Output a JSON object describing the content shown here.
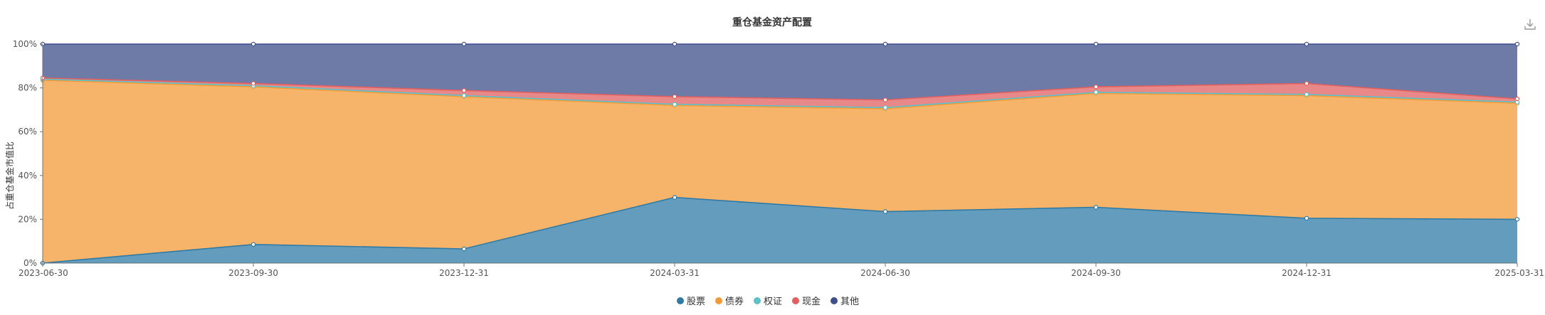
{
  "chart_data": {
    "type": "area",
    "stacked": true,
    "title": "重仓基金资产配置",
    "ylabel": "占重仓基金市值比",
    "xlabel": "",
    "ylim": [
      0,
      100
    ],
    "y_tick_values": [
      0,
      20,
      40,
      60,
      80,
      100
    ],
    "y_tick_labels": [
      "0%",
      "20%",
      "40%",
      "60%",
      "80%",
      "100%"
    ],
    "categories": [
      "2023-06-30",
      "2023-09-30",
      "2023-12-31",
      "2024-03-31",
      "2024-06-30",
      "2024-09-30",
      "2024-12-31",
      "2025-03-31"
    ],
    "legend_position": "bottom-center",
    "grid": false,
    "series": [
      {
        "name": "股票",
        "color": "#2f7ba6",
        "values": [
          0,
          8.5,
          6.5,
          30.0,
          23.5,
          25.5,
          20.5,
          20.0
        ]
      },
      {
        "name": "债券",
        "color": "#f39a38",
        "values": [
          83.5,
          72.0,
          69.5,
          42.0,
          47.0,
          52.0,
          56.0,
          53.0
        ]
      },
      {
        "name": "权证",
        "color": "#5ec0c8",
        "values": [
          0.5,
          0.5,
          0.5,
          0.5,
          0.5,
          0.5,
          0.5,
          0.5
        ]
      },
      {
        "name": "现金",
        "color": "#e06060",
        "values": [
          0.5,
          1.0,
          2.3,
          3.5,
          3.5,
          2.5,
          5.0,
          1.5
        ]
      },
      {
        "name": "其他",
        "color": "#3f4f8a",
        "values": [
          15.5,
          18.0,
          21.2,
          24.0,
          25.5,
          19.5,
          18.0,
          25.0
        ]
      }
    ]
  },
  "toolbar": {
    "download_icon": "download-icon"
  }
}
